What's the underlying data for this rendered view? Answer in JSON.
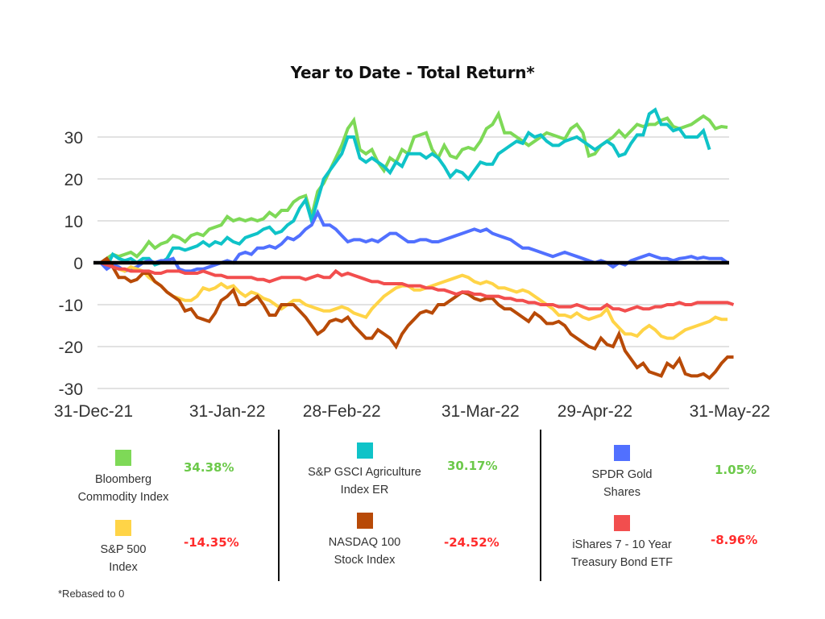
{
  "chart_data": {
    "type": "line",
    "title": "Year to Date - Total Return*",
    "xlabel": "",
    "ylabel": "",
    "ylim": [
      -30,
      35
    ],
    "yticks": [
      "30",
      "20",
      "10",
      "0",
      "-10",
      "-20",
      "-30"
    ],
    "ytick_values": [
      30,
      20,
      10,
      0,
      -10,
      -20,
      -30
    ],
    "xticks": [
      "31-Dec-21",
      "31-Jan-22",
      "28-Feb-22",
      "31-Mar-22",
      "29-Apr-22",
      "31-May-22"
    ],
    "xtick_positions": [
      0,
      21,
      40,
      63,
      82,
      104
    ],
    "x_count": 105,
    "grid": true,
    "zero_line": true,
    "series": [
      {
        "name": "Bloomberg Commodity Index",
        "color": "#7ed957",
        "ytd": "34.38%",
        "ytd_color": "#6cc94a",
        "values": [
          0,
          1,
          2,
          1.5,
          2,
          2.5,
          1.5,
          3,
          5,
          3.5,
          4.5,
          5,
          6.5,
          6,
          5,
          6.5,
          7,
          6.5,
          8,
          8.5,
          9,
          11,
          10,
          10.5,
          10,
          10.5,
          10,
          10.5,
          12,
          11,
          12.5,
          12.5,
          14.5,
          15.5,
          16,
          11,
          17,
          19,
          22,
          25,
          28,
          32,
          34,
          27,
          26,
          27,
          24,
          22,
          25,
          24,
          27,
          26,
          30,
          30.5,
          31,
          27,
          25,
          28,
          25.5,
          25,
          27,
          27.5,
          27,
          29,
          32,
          33,
          35.5,
          31,
          31,
          30,
          29,
          28,
          29,
          30,
          31,
          30.5,
          30,
          29.5,
          32,
          33,
          31,
          25.5,
          26,
          28,
          29,
          30,
          31.5,
          30,
          31.5,
          33,
          32.5,
          33,
          33,
          34,
          34.5,
          32.5,
          32,
          32.5,
          33,
          34,
          35,
          34,
          32,
          32.5,
          32.3
        ]
      },
      {
        "name": "S&P GSCI Agriculture Index ER",
        "color": "#0fc3c8",
        "ytd": "30.17%",
        "ytd_color": "#6cc94a",
        "values": [
          0,
          -1,
          2,
          1,
          0.5,
          1,
          0,
          1,
          1,
          -0.5,
          0,
          1,
          3.5,
          3.5,
          3,
          3.5,
          4,
          5,
          4,
          5,
          4.5,
          6,
          5,
          4.5,
          6,
          6.5,
          7,
          8,
          8.5,
          7,
          7.5,
          9,
          10,
          13,
          15,
          10,
          15,
          20,
          22,
          24,
          26,
          30,
          30,
          25,
          24,
          25,
          24,
          23,
          21.5,
          24,
          23,
          26,
          26,
          26,
          25,
          26,
          25,
          23,
          20.5,
          22,
          21.5,
          20,
          22,
          24,
          23.5,
          23.5,
          26,
          27,
          28,
          29,
          28.5,
          31,
          30,
          30.5,
          29,
          28,
          28,
          29,
          29.5,
          30,
          29,
          28,
          27,
          28,
          29,
          28,
          25.5,
          26,
          28.5,
          30.5,
          30.5,
          35.5,
          36.5,
          33,
          33,
          31.5,
          32,
          30,
          30,
          30,
          31.5,
          27
        ]
      },
      {
        "name": "SPDR Gold Shares",
        "color": "#5170ff",
        "ytd": "1.05%",
        "ytd_color": "#6cc94a",
        "values": [
          0,
          -1.5,
          -0.5,
          -1,
          -2,
          -1.5,
          -1,
          0,
          0.5,
          0,
          0.5,
          0.5,
          1,
          -1.5,
          -2,
          -2,
          -1.5,
          -1.5,
          -1,
          -0.5,
          0,
          0.5,
          0,
          2,
          2.5,
          2,
          3.5,
          3.5,
          4,
          3.5,
          4.5,
          6,
          5.5,
          6.5,
          8,
          9,
          12,
          9,
          9,
          8,
          6.5,
          5,
          5.5,
          5.5,
          5,
          5.5,
          5,
          6,
          7,
          7,
          6,
          5,
          5,
          5.5,
          5.5,
          5,
          5,
          5.5,
          6,
          6.5,
          7,
          7.5,
          8,
          7.5,
          8,
          7,
          6.5,
          6,
          5.5,
          4.5,
          3.5,
          3.5,
          3,
          2.5,
          2,
          1.5,
          2,
          2.5,
          2,
          1.5,
          1,
          0.5,
          0,
          0.5,
          0,
          -1,
          0,
          -0.5,
          0.5,
          1,
          1.5,
          2,
          1.5,
          1,
          1,
          0.5,
          1,
          1.2,
          1.5,
          1,
          1.3,
          1,
          1,
          1,
          0
        ]
      },
      {
        "name": "S&P 500 Index",
        "color": "#ffd447",
        "ytd": "-14.35%",
        "ytd_color": "#ff2c2c",
        "values": [
          0,
          0.5,
          -1,
          -1.5,
          -2,
          -1,
          -1.5,
          -2,
          -3.5,
          -4.5,
          -5.5,
          -7,
          -8,
          -8.5,
          -9,
          -9,
          -8,
          -6,
          -6.5,
          -6,
          -5,
          -6,
          -5.5,
          -7,
          -8,
          -7,
          -7.5,
          -8.5,
          -9,
          -10,
          -11,
          -10,
          -9,
          -9,
          -10,
          -10.5,
          -11,
          -11.5,
          -11.5,
          -11,
          -10.5,
          -11,
          -12,
          -12.5,
          -13,
          -11,
          -9.5,
          -8,
          -7,
          -6,
          -5.5,
          -5.5,
          -6.5,
          -6.5,
          -6,
          -5.5,
          -5,
          -4.5,
          -4,
          -3.5,
          -3,
          -3.5,
          -4.5,
          -5,
          -4.5,
          -5,
          -6,
          -6,
          -6.5,
          -7,
          -6.5,
          -7,
          -8,
          -9,
          -10,
          -11,
          -12.5,
          -12.5,
          -13,
          -12,
          -13,
          -13.5,
          -13,
          -12.5,
          -11,
          -14,
          -15.5,
          -17,
          -17,
          -17.5,
          -16,
          -15,
          -16,
          -17.5,
          -18,
          -18,
          -17,
          -16,
          -15.5,
          -15,
          -14.5,
          -14,
          -13,
          -13.5,
          -13.5
        ]
      },
      {
        "name": "NASDAQ 100 Stock Index",
        "color": "#b84a07",
        "ytd": "-24.52%",
        "ytd_color": "#ff2c2c",
        "values": [
          0,
          1,
          -1,
          -3.5,
          -3.5,
          -4.5,
          -4,
          -2.5,
          -2.5,
          -4.5,
          -5.5,
          -7,
          -8,
          -9,
          -11.5,
          -11,
          -13,
          -13.5,
          -14,
          -12,
          -9,
          -8,
          -6.5,
          -10,
          -10,
          -9,
          -8,
          -10,
          -12.5,
          -12.5,
          -10,
          -10,
          -10,
          -11.5,
          -13,
          -15,
          -17,
          -16,
          -14,
          -13.5,
          -14,
          -13,
          -15,
          -16.5,
          -18,
          -18,
          -16,
          -17,
          -18,
          -20,
          -17,
          -15,
          -13.5,
          -12,
          -11.5,
          -12,
          -10,
          -10,
          -9,
          -8,
          -7,
          -7.5,
          -8.5,
          -9,
          -8.5,
          -8.5,
          -10,
          -11,
          -11,
          -12,
          -13,
          -14,
          -12,
          -13,
          -14.5,
          -14.5,
          -14,
          -15,
          -17,
          -18,
          -19,
          -20,
          -20.5,
          -18,
          -19.5,
          -20,
          -17,
          -21,
          -23,
          -25,
          -24,
          -26,
          -26.5,
          -27,
          -24,
          -25,
          -23,
          -26.5,
          -27,
          -27,
          -26.5,
          -27.5,
          -26,
          -24,
          -22.5,
          -22.5
        ]
      },
      {
        "name": "iShares 7 - 10 Year Treasury Bond ETF",
        "color": "#f24e4e",
        "ytd": "-8.96%",
        "ytd_color": "#ff2c2c",
        "values": [
          0,
          -0.5,
          -1,
          -1.5,
          -1.5,
          -2,
          -2,
          -2,
          -2,
          -2.5,
          -2.5,
          -2,
          -2,
          -2,
          -2.5,
          -2.5,
          -2.5,
          -2,
          -2.5,
          -3,
          -3,
          -3.5,
          -3.5,
          -3.5,
          -3.5,
          -3.5,
          -4,
          -4,
          -4.5,
          -4,
          -3.5,
          -3.5,
          -3.5,
          -3.5,
          -4,
          -3.5,
          -3,
          -3.5,
          -3.5,
          -2,
          -3,
          -2.5,
          -3,
          -3.5,
          -4,
          -4.5,
          -4.5,
          -5,
          -5,
          -5,
          -5,
          -5.5,
          -5.5,
          -5.5,
          -6,
          -6,
          -6.5,
          -6.5,
          -7,
          -7.5,
          -7,
          -7,
          -7.5,
          -7.5,
          -8,
          -8,
          -8,
          -8.5,
          -8.5,
          -9,
          -9,
          -9.5,
          -9.5,
          -10,
          -10,
          -10,
          -10.5,
          -10.5,
          -10.5,
          -10,
          -10.5,
          -11,
          -11,
          -11,
          -10,
          -11,
          -11,
          -11.5,
          -11,
          -10.5,
          -11,
          -11,
          -10.5,
          -10.5,
          -10,
          -10,
          -9.5,
          -10,
          -10,
          -9.5,
          -9.5,
          -9.5,
          -9.5,
          -9.5,
          -9.5,
          -10
        ]
      }
    ]
  },
  "legend": {
    "items": [
      {
        "label_line1": "Bloomberg",
        "label_line2": "Commodity Index",
        "value": "34.38%"
      },
      {
        "label_line1": "S&P 500",
        "label_line2": "Index",
        "value": "-14.35%"
      },
      {
        "label_line1": "S&P GSCI Agriculture",
        "label_line2": "Index ER",
        "value": "30.17%"
      },
      {
        "label_line1": "NASDAQ 100",
        "label_line2": "Stock Index",
        "value": "-24.52%"
      },
      {
        "label_line1": "SPDR Gold",
        "label_line2": "Shares",
        "value": "1.05%"
      },
      {
        "label_line1": "iShares 7 - 10 Year",
        "label_line2": "Treasury Bond ETF",
        "value": "-8.96%"
      }
    ]
  },
  "footnote": "*Rebased to 0"
}
